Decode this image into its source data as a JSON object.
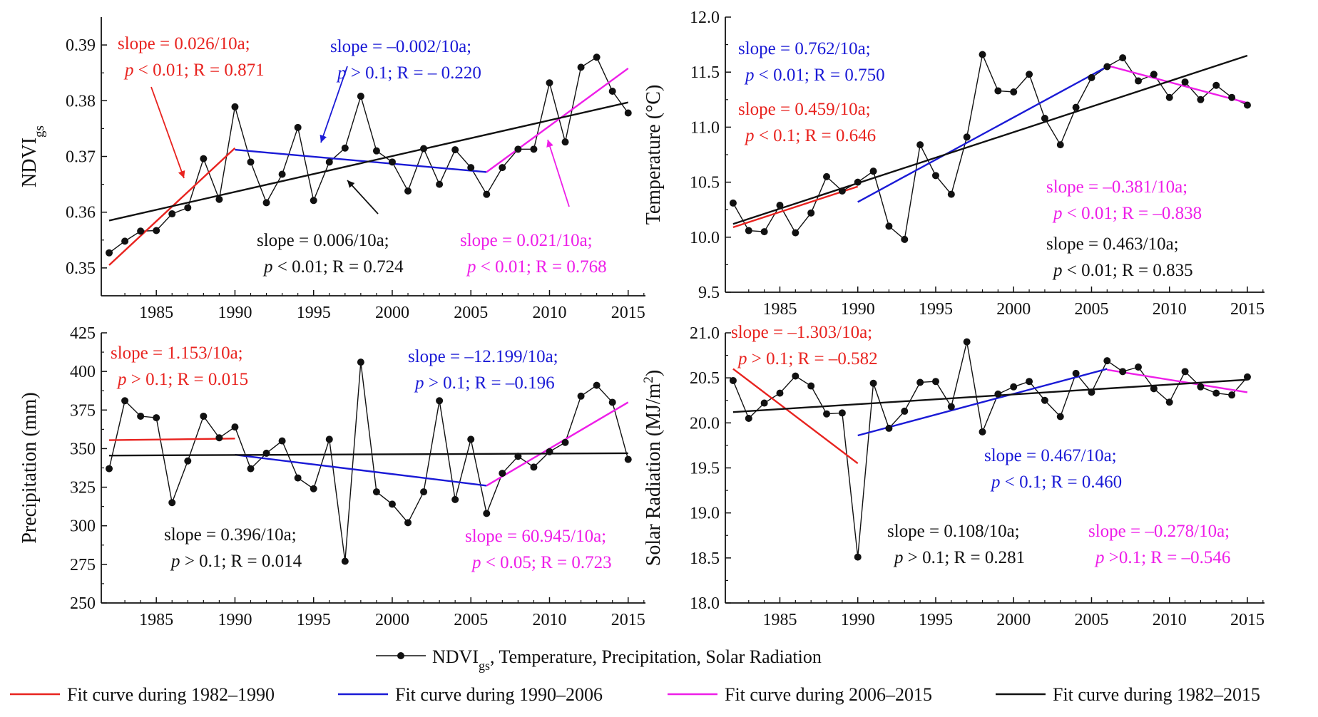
{
  "chart_data": [
    {
      "type": "line",
      "panel": "top-left",
      "ylabel": "NDVI",
      "ylabel_sub": "gs",
      "xlim": [
        1981.5,
        2016.1
      ],
      "ylim": [
        0.345,
        0.395
      ],
      "xticks": [
        "1985",
        "1990",
        "1995",
        "2000",
        "2005",
        "2010",
        "2015"
      ],
      "yticks": [
        "0.35",
        "0.36",
        "0.37",
        "0.38",
        "0.39"
      ],
      "x": [
        1982,
        1983,
        1984,
        1985,
        1986,
        1987,
        1988,
        1989,
        1990,
        1991,
        1992,
        1993,
        1994,
        1995,
        1996,
        1997,
        1998,
        1999,
        2000,
        2001,
        2002,
        2003,
        2004,
        2005,
        2006,
        2007,
        2008,
        2009,
        2010,
        2011,
        2012,
        2013,
        2014,
        2015
      ],
      "values": [
        0.3527,
        0.3548,
        0.3566,
        0.3567,
        0.3597,
        0.3608,
        0.3696,
        0.3623,
        0.3789,
        0.369,
        0.3617,
        0.3668,
        0.3752,
        0.3621,
        0.369,
        0.3715,
        0.3808,
        0.371,
        0.369,
        0.3638,
        0.3714,
        0.365,
        0.3712,
        0.368,
        0.3632,
        0.368,
        0.3713,
        0.3713,
        0.3832,
        0.3726,
        0.386,
        0.3878,
        0.3817,
        0.3778
      ],
      "fits": [
        {
          "color": "#e8231f",
          "x0": 1982,
          "y0": 0.3505,
          "x1": 1990,
          "y1": 0.3715
        },
        {
          "color": "#1a1ad6",
          "x0": 1990,
          "y0": 0.3712,
          "x1": 2006,
          "y1": 0.3672
        },
        {
          "color": "#ee1ee8",
          "x0": 2006,
          "y0": 0.3672,
          "x1": 2015,
          "y1": 0.3858
        },
        {
          "color": "#111111",
          "x0": 1982,
          "y0": 0.3585,
          "x1": 2015,
          "y1": 0.3797
        }
      ],
      "annotations": [
        {
          "color": "#e8231f",
          "line1": "slope = 0.026/10a;",
          "p": "p",
          "line2": " < 0.01; R = 0.871"
        },
        {
          "color": "#1a1ad6",
          "line1": "slope = –0.002/10a;",
          "p": "p",
          "line2": " > 0.1; R = – 0.220"
        },
        {
          "color": "#111111",
          "line1": "slope = 0.006/10a;",
          "p": "p",
          "line2": " < 0.01; R = 0.724"
        },
        {
          "color": "#ee1ee8",
          "line1": "slope = 0.021/10a;",
          "p": "p",
          "line2": " < 0.01; R = 0.768"
        }
      ]
    },
    {
      "type": "line",
      "panel": "top-right",
      "ylabel": "Temperature (°C)",
      "xlim": [
        1981.5,
        2016.1
      ],
      "ylim": [
        9.5,
        12.0
      ],
      "xticks": [
        "1985",
        "1990",
        "1995",
        "2000",
        "2005",
        "2010",
        "2015"
      ],
      "yticks": [
        "9.5",
        "10.0",
        "10.5",
        "11.0",
        "11.5",
        "12.0"
      ],
      "x": [
        1982,
        1983,
        1984,
        1985,
        1986,
        1987,
        1988,
        1989,
        1990,
        1991,
        1992,
        1993,
        1994,
        1995,
        1996,
        1997,
        1998,
        1999,
        2000,
        2001,
        2002,
        2003,
        2004,
        2005,
        2006,
        2007,
        2008,
        2009,
        2010,
        2011,
        2012,
        2013,
        2014,
        2015
      ],
      "values": [
        10.31,
        10.06,
        10.05,
        10.29,
        10.04,
        10.22,
        10.55,
        10.42,
        10.5,
        10.6,
        10.1,
        9.98,
        10.84,
        10.56,
        10.39,
        10.91,
        11.66,
        11.33,
        11.32,
        11.48,
        11.08,
        10.84,
        11.18,
        11.45,
        11.55,
        11.63,
        11.42,
        11.48,
        11.27,
        11.41,
        11.25,
        11.38,
        11.27,
        11.2
      ],
      "fits": [
        {
          "color": "#e8231f",
          "x0": 1982,
          "y0": 10.09,
          "x1": 1990,
          "y1": 10.46
        },
        {
          "color": "#1a1ad6",
          "x0": 1990,
          "y0": 10.32,
          "x1": 2006,
          "y1": 11.55
        },
        {
          "color": "#ee1ee8",
          "x0": 2006,
          "y0": 11.56,
          "x1": 2015,
          "y1": 11.22
        },
        {
          "color": "#111111",
          "x0": 1982,
          "y0": 10.12,
          "x1": 2015,
          "y1": 11.65
        }
      ],
      "annotations": [
        {
          "color": "#1a1ad6",
          "line1": "slope = 0.762/10a;",
          "p": "p",
          "line2": " < 0.01; R = 0.750"
        },
        {
          "color": "#e8231f",
          "line1": "slope = 0.459/10a;",
          "p": "p",
          "line2": " < 0.1; R = 0.646"
        },
        {
          "color": "#ee1ee8",
          "line1": "slope = –0.381/10a;",
          "p": "p",
          "line2": " < 0.01; R = –0.838"
        },
        {
          "color": "#111111",
          "line1": "slope = 0.463/10a;",
          "p": "p",
          "line2": " < 0.01; R = 0.835"
        }
      ]
    },
    {
      "type": "line",
      "panel": "bottom-left",
      "ylabel": "Precipitation  (mm)",
      "xlim": [
        1981.5,
        2016.1
      ],
      "ylim": [
        250,
        425
      ],
      "xticks": [
        "1985",
        "1990",
        "1995",
        "2000",
        "2005",
        "2010",
        "2015"
      ],
      "yticks": [
        "250",
        "275",
        "300",
        "325",
        "350",
        "375",
        "400",
        "425"
      ],
      "x": [
        1982,
        1983,
        1984,
        1985,
        1986,
        1987,
        1988,
        1989,
        1990,
        1991,
        1992,
        1993,
        1994,
        1995,
        1996,
        1997,
        1998,
        1999,
        2000,
        2001,
        2002,
        2003,
        2004,
        2005,
        2006,
        2007,
        2008,
        2009,
        2010,
        2011,
        2012,
        2013,
        2014,
        2015
      ],
      "values": [
        337,
        381,
        371,
        370,
        315,
        342,
        371,
        357,
        364,
        337,
        347,
        355,
        331,
        324,
        356,
        277,
        406,
        322,
        314,
        302,
        322,
        381,
        317,
        356,
        308,
        334,
        345,
        338,
        348,
        354,
        384,
        391,
        380,
        343
      ],
      "fits": [
        {
          "color": "#e8231f",
          "x0": 1982,
          "y0": 355.5,
          "x1": 1990,
          "y1": 356.5
        },
        {
          "color": "#1a1ad6",
          "x0": 1990,
          "y0": 346,
          "x1": 2006,
          "y1": 326
        },
        {
          "color": "#ee1ee8",
          "x0": 2006,
          "y0": 326,
          "x1": 2015,
          "y1": 380
        },
        {
          "color": "#111111",
          "x0": 1982,
          "y0": 345.5,
          "x1": 2015,
          "y1": 347
        }
      ],
      "annotations": [
        {
          "color": "#e8231f",
          "line1": "slope = 1.153/10a;",
          "p": "p",
          "line2": " > 0.1; R = 0.015"
        },
        {
          "color": "#1a1ad6",
          "line1": "slope = –12.199/10a;",
          "p": "p",
          "line2": " > 0.1; R = –0.196"
        },
        {
          "color": "#111111",
          "line1": "slope = 0.396/10a;",
          "p": "p",
          "line2": " > 0.1; R = 0.014"
        },
        {
          "color": "#ee1ee8",
          "line1": "slope = 60.945/10a;",
          "p": "p",
          "line2": " < 0.05; R = 0.723"
        }
      ]
    },
    {
      "type": "line",
      "panel": "bottom-right",
      "ylabel": "Solar Radiation (MJ/m",
      "ylabel_sup": "2",
      "ylabel_tail": ")",
      "xlim": [
        1981.5,
        2016.1
      ],
      "ylim": [
        18.0,
        21.0
      ],
      "xticks": [
        "1985",
        "1990",
        "1995",
        "2000",
        "2005",
        "2010",
        "2015"
      ],
      "yticks": [
        "18.0",
        "18.5",
        "19.0",
        "19.5",
        "20.0",
        "20.5",
        "21.0"
      ],
      "x": [
        1982,
        1983,
        1984,
        1985,
        1986,
        1987,
        1988,
        1989,
        1990,
        1991,
        1992,
        1993,
        1994,
        1995,
        1996,
        1997,
        1998,
        1999,
        2000,
        2001,
        2002,
        2003,
        2004,
        2005,
        2006,
        2007,
        2008,
        2009,
        2010,
        2011,
        2012,
        2013,
        2014,
        2015
      ],
      "values": [
        20.47,
        20.05,
        20.22,
        20.33,
        20.52,
        20.41,
        20.1,
        20.11,
        18.51,
        20.44,
        19.94,
        20.13,
        20.45,
        20.46,
        20.18,
        20.9,
        19.9,
        20.32,
        20.4,
        20.46,
        20.25,
        20.07,
        20.55,
        20.34,
        20.69,
        20.57,
        20.62,
        20.38,
        20.23,
        20.57,
        20.4,
        20.33,
        20.31,
        20.51
      ],
      "fits": [
        {
          "color": "#e8231f",
          "x0": 1982,
          "y0": 20.6,
          "x1": 1990,
          "y1": 19.55
        },
        {
          "color": "#1a1ad6",
          "x0": 1990,
          "y0": 19.86,
          "x1": 2006,
          "y1": 20.6
        },
        {
          "color": "#ee1ee8",
          "x0": 2006,
          "y0": 20.59,
          "x1": 2015,
          "y1": 20.34
        },
        {
          "color": "#111111",
          "x0": 1982,
          "y0": 20.12,
          "x1": 2015,
          "y1": 20.48
        }
      ],
      "annotations": [
        {
          "color": "#e8231f",
          "line1": "slope = –1.303/10a;",
          "p": "p",
          "line2": " > 0.1; R = –0.582"
        },
        {
          "color": "#1a1ad6",
          "line1": "slope = 0.467/10a;",
          "p": "p",
          "line2": " < 0.1; R = 0.460"
        },
        {
          "color": "#111111",
          "line1": "slope = 0.108/10a;",
          "p": "p",
          "line2": " > 0.1; R = 0.281"
        },
        {
          "color": "#ee1ee8",
          "line1": "slope = –0.278/10a;",
          "p": "p",
          "line2": " >0.1; R = –0.546"
        }
      ]
    }
  ],
  "legend": {
    "series": {
      "label_main": "NDVI",
      "label_sub": "gs",
      "label_rest": ",  Temperature,  Precipitation,  Solar Radiation"
    },
    "fits": [
      {
        "label": "Fit curve during 1982–1990",
        "color": "#e8231f"
      },
      {
        "label": "Fit curve during 1990–2006",
        "color": "#1a1ad6"
      },
      {
        "label": "Fit curve during 2006–2015",
        "color": "#ee1ee8"
      },
      {
        "label": "Fit curve during 1982–2015",
        "color": "#111111"
      }
    ]
  }
}
